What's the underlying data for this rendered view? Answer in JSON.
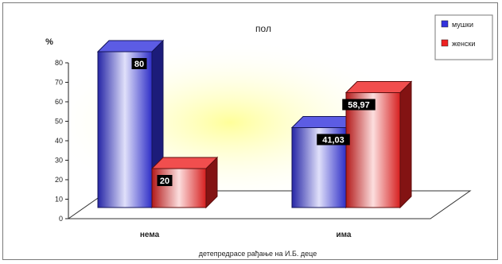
{
  "chart_data": {
    "type": "bar",
    "title": "пол",
    "xlabel": "детепредрасе рађање на И.Б. деце",
    "ylabel": "%",
    "ylim": [
      0,
      80
    ],
    "yticks": [
      0,
      10,
      20,
      30,
      40,
      50,
      60,
      70,
      80
    ],
    "categories": [
      "нема",
      "има"
    ],
    "series": [
      {
        "name": "мушки",
        "values": [
          80,
          41.03
        ],
        "labels": [
          "80",
          "41,03"
        ],
        "color": "#3333dd"
      },
      {
        "name": "женски",
        "values": [
          20,
          58.97
        ],
        "labels": [
          "20",
          "58,97"
        ],
        "color": "#ee2222"
      }
    ],
    "style": "3d-column",
    "legend_position": "top-right",
    "background_glow": "#ffff99"
  }
}
